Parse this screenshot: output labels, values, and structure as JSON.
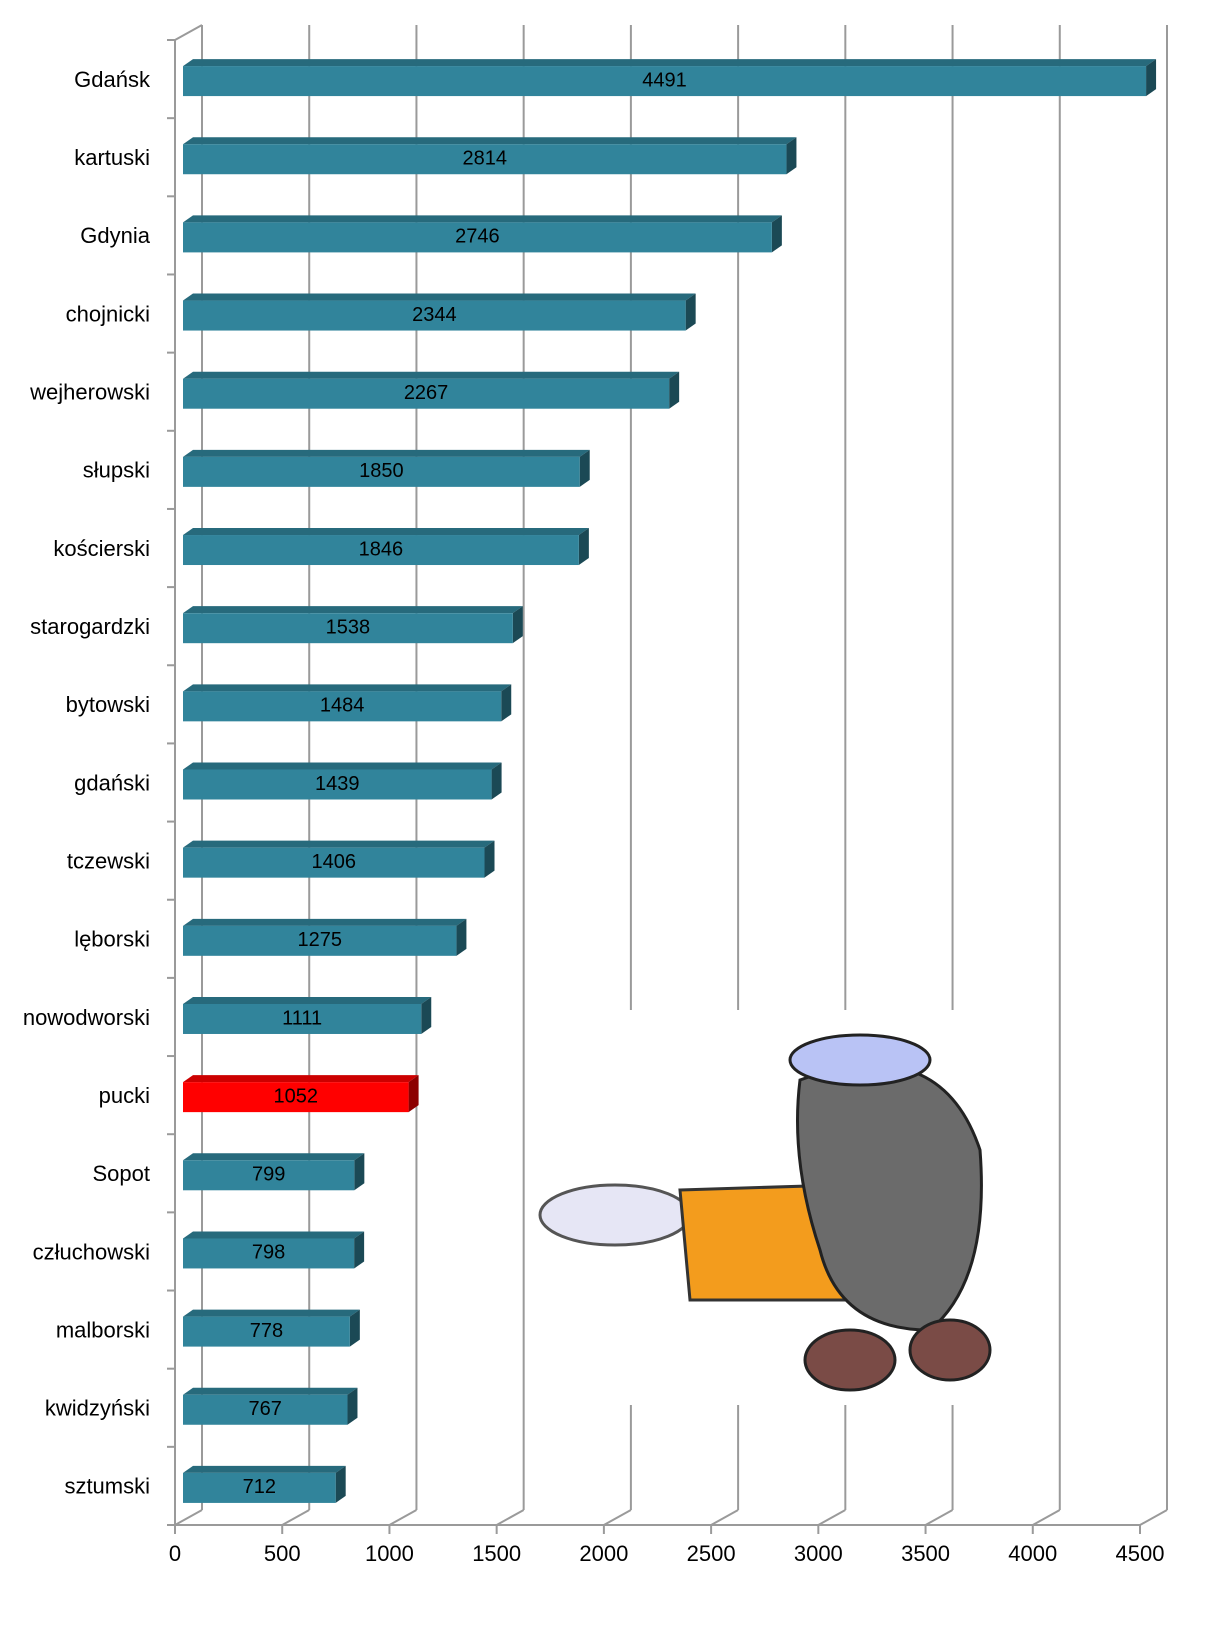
{
  "chart_data": {
    "type": "bar",
    "orientation": "horizontal",
    "categories": [
      "Gdańsk",
      "kartuski",
      "Gdynia",
      "chojnicki",
      "wejherowski",
      "słupski",
      "kościerski",
      "starogardzki",
      "bytowski",
      "gdański",
      "tczewski",
      "lęborski",
      "nowodworski",
      "pucki",
      "Sopot",
      "człuchowski",
      "malborski",
      "kwidzyński",
      "sztumski"
    ],
    "values": [
      4491,
      2814,
      2746,
      2344,
      2267,
      1850,
      1846,
      1538,
      1484,
      1439,
      1406,
      1275,
      1111,
      1052,
      799,
      798,
      778,
      767,
      712
    ],
    "colors": [
      "#31849b",
      "#31849b",
      "#31849b",
      "#31849b",
      "#31849b",
      "#31849b",
      "#31849b",
      "#31849b",
      "#31849b",
      "#31849b",
      "#31849b",
      "#31849b",
      "#31849b",
      "#ff0000",
      "#31849b",
      "#31849b",
      "#31849b",
      "#31849b",
      "#31849b"
    ],
    "xlim": [
      0,
      4500
    ],
    "xticks": [
      0,
      500,
      1000,
      1500,
      2000,
      2500,
      3000,
      3500,
      4000,
      4500
    ],
    "grid": true
  }
}
